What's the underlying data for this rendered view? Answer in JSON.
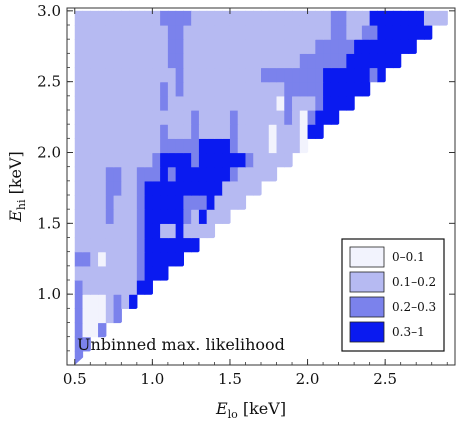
{
  "chart_data": {
    "type": "heatmap",
    "xlabel": {
      "main": "E",
      "sub": "lo",
      "unit": " [keV]"
    },
    "ylabel": {
      "main": "E",
      "sub": "hi",
      "unit": " [keV]"
    },
    "xlim": [
      0.45,
      2.95
    ],
    "ylim": [
      0.5,
      3.02
    ],
    "x_ticks": [
      "0.5",
      "1.0",
      "1.5",
      "2.0",
      "2.5"
    ],
    "y_ticks": [
      "1.0",
      "1.5",
      "2.0",
      "2.5",
      "3.0"
    ],
    "cell_size": 0.1,
    "annotation": "Unbinned max. likelihood",
    "legend": {
      "placement": "bottom-right",
      "entries": [
        {
          "label": "0–0.1",
          "color": "#f2f3fd"
        },
        {
          "label": "0.1–0.2",
          "color": "#b6baf2"
        },
        {
          "label": "0.2–0.3",
          "color": "#7b82ec"
        },
        {
          "label": "0.3–1",
          "color": "#0a1af0"
        }
      ]
    },
    "rows": [
      {
        "y_lo": 0.5,
        "cols": "2"
      },
      {
        "y_lo": 0.6,
        "cols": "22"
      },
      {
        "y_lo": 0.7,
        "cols": "2002"
      },
      {
        "y_lo": 0.8,
        "cols": "200012"
      },
      {
        "y_lo": 0.9,
        "cols": "20001213"
      },
      {
        "y_lo": 1.0,
        "cols": "2111111133"
      },
      {
        "y_lo": 1.1,
        "cols": "111111112333"
      },
      {
        "y_lo": 1.2,
        "cols": "22101111233333"
      },
      {
        "y_lo": 1.3,
        "cols": "1111111123333333"
      },
      {
        "y_lo": 1.4,
        "cols": "111111112331131111"
      },
      {
        "y_lo": 1.5,
        "cols": "11112111233333213111"
      },
      {
        "y_lo": 1.6,
        "cols": "1111211123333322231111"
      },
      {
        "y_lo": 1.7,
        "cols": "111122112333333333311111"
      },
      {
        "y_lo": 1.8,
        "cols": "11112211222323333333211111"
      },
      {
        "y_lo": 1.9,
        "cols": "1111111111233332333333211111"
      },
      {
        "y_lo": 2.0,
        "cols": "111111111112222233332111101110"
      },
      {
        "y_lo": 2.1,
        "cols": "11111111111211121111211110111033"
      },
      {
        "y_lo": 2.2,
        "cols": "1111111111111112111121111112102333"
      },
      {
        "y_lo": 2.3,
        "cols": "111111111112111111111111110211123333"
      },
      {
        "y_lo": 2.4,
        "cols": "11111111111212111111111111122222333333"
      },
      {
        "y_lo": 2.5,
        "cols": "1111111111111211111111112222222233333323"
      },
      {
        "y_lo": 2.6,
        "cols": "111111111111221111111111111112222223333333"
      },
      {
        "y_lo": 2.7,
        "cols": "11111111111122111111111111111112222233333333"
      },
      {
        "y_lo": 2.8,
        "cols": "1111111111112211111111111111111112211223333333"
      },
      {
        "y_lo": 2.9,
        "cols": "111111111112222111111111111111111221113333333111"
      }
    ]
  }
}
